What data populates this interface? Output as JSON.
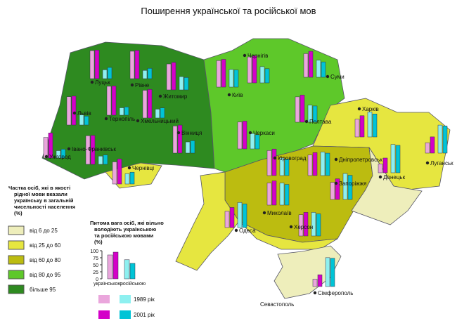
{
  "chart_data": {
    "type": "map-bars",
    "title": "Поширення української та російської мов",
    "regions": [
      {
        "name": "Луцьк",
        "values": [
          95,
          97,
          30,
          38
        ]
      },
      {
        "name": "Рівне",
        "values": [
          93,
          96,
          28,
          35
        ]
      },
      {
        "name": "Житомир",
        "values": [
          88,
          93,
          45,
          42
        ]
      },
      {
        "name": "Чернігів",
        "values": [
          88,
          92,
          55,
          48
        ]
      },
      {
        "name": "Суми",
        "values": [
          80,
          88,
          58,
          52
        ]
      },
      {
        "name": "Київ",
        "values": [
          90,
          94,
          60,
          58
        ]
      },
      {
        "name": "Львів",
        "values": [
          96,
          98,
          35,
          30
        ]
      },
      {
        "name": "Тернопіль",
        "values": [
          98,
          99,
          25,
          28
        ]
      },
      {
        "name": "Хмельницький",
        "values": [
          94,
          97,
          30,
          34
        ]
      },
      {
        "name": "Вінниця",
        "values": [
          92,
          95,
          38,
          42
        ]
      },
      {
        "name": "Черкаси",
        "values": [
          91,
          94,
          52,
          48
        ]
      },
      {
        "name": "Полтава",
        "values": [
          86,
          92,
          58,
          55
        ]
      },
      {
        "name": "Харків",
        "values": [
          60,
          72,
          85,
          78
        ]
      },
      {
        "name": "Луганськ",
        "values": [
          35,
          55,
          95,
          92
        ]
      },
      {
        "name": "Донецьк",
        "values": [
          30,
          50,
          96,
          93
        ]
      },
      {
        "name": "Ужгород",
        "values": [
          70,
          85,
          25,
          30
        ]
      },
      {
        "name": "Івано-Франківськ",
        "values": [
          97,
          98,
          28,
          32
        ]
      },
      {
        "name": "Чернівці",
        "values": [
          75,
          85,
          35,
          40
        ]
      },
      {
        "name": "Кіровоград",
        "values": [
          85,
          90,
          60,
          56
        ]
      },
      {
        "name": "Дніпропетровськ",
        "values": [
          70,
          78,
          80,
          76
        ]
      },
      {
        "name": "Запоріжжя",
        "values": [
          58,
          70,
          88,
          82
        ]
      },
      {
        "name": "Миколаїв",
        "values": [
          75,
          82,
          75,
          70
        ]
      },
      {
        "name": "Одеса",
        "values": [
          55,
          68,
          85,
          80
        ]
      },
      {
        "name": "Херсон",
        "values": [
          72,
          80,
          80,
          75
        ]
      },
      {
        "name": "Сімферополь",
        "values": [
          25,
          40,
          98,
          96
        ]
      }
    ],
    "other_labels": [
      "Севастополь"
    ],
    "bar_colors": [
      "#eaa6dc",
      "#d400c8",
      "#8ef0f0",
      "#00c4d6"
    ],
    "zone_legend": {
      "title": [
        "Частка осіб, які в якості",
        "рідної мови вказали",
        "українську в загальній",
        "чисельності населення",
        "(%)"
      ],
      "items": [
        {
          "label": "від 6 до 25",
          "color": "#eeeebb"
        },
        {
          "label": "від 25 до 60",
          "color": "#e6e640"
        },
        {
          "label": "від 60 до 80",
          "color": "#bcbc10"
        },
        {
          "label": "від 80 до 95",
          "color": "#5ec82a"
        },
        {
          "label": "більше 95",
          "color": "#2e8a20"
        }
      ]
    },
    "bar_legend": {
      "title": [
        "Питома вага осіб, які вільно",
        "володіють українською",
        "та російською мовами",
        "(%)"
      ],
      "categories": [
        "українською",
        "російською"
      ],
      "series": [
        {
          "name": "1989 рік",
          "colors": [
            "#eaa6dc",
            "#8ef0f0"
          ],
          "values": [
            85,
            68
          ]
        },
        {
          "name": "2001 рік",
          "colors": [
            "#d400c8",
            "#00c4d6"
          ],
          "values": [
            95,
            55
          ]
        }
      ],
      "ylim": [
        0,
        100
      ],
      "yticks": [
        0,
        25,
        50,
        75,
        100
      ]
    }
  }
}
